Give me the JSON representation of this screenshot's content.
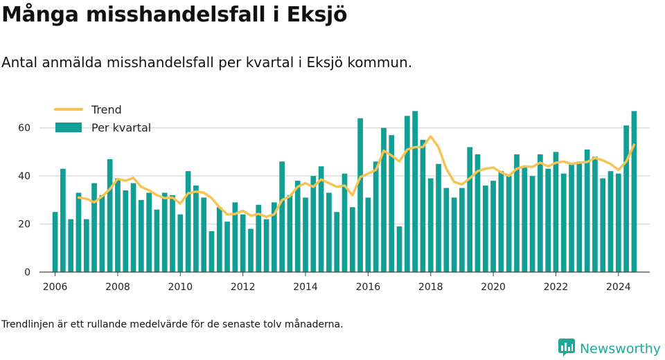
{
  "header": {
    "title": "Många misshandelsfall i Eksjö",
    "subtitle": "Antal anmälda misshandelsfall per kvartal i Eksjö kommun."
  },
  "footnote": "Trendlinjen är ett rullande medelvärde för de senaste tolv månaderna.",
  "brand": {
    "name": "Newsworthy",
    "icon": "newsworthy-logo-icon",
    "color": "#2a9d8f"
  },
  "colors": {
    "bars": "#119e95",
    "trend": "#f5c455",
    "grid": "#dddddd",
    "axis": "#444444"
  },
  "chart_data": {
    "type": "bar",
    "title": "Många misshandelsfall i Eksjö",
    "ylim": [
      0,
      70
    ],
    "yticks": [
      0,
      20,
      40,
      60
    ],
    "xlim": [
      2005.5,
      2025.0
    ],
    "xticks": [
      2006,
      2008,
      2010,
      2012,
      2014,
      2016,
      2018,
      2020,
      2022,
      2024
    ],
    "grid": true,
    "legend_position": "top-left",
    "series": [
      {
        "name": "Per kvartal",
        "type": "bar",
        "x": [
          2006.0,
          2006.25,
          2006.5,
          2006.75,
          2007.0,
          2007.25,
          2007.5,
          2007.75,
          2008.0,
          2008.25,
          2008.5,
          2008.75,
          2009.0,
          2009.25,
          2009.5,
          2009.75,
          2010.0,
          2010.25,
          2010.5,
          2010.75,
          2011.0,
          2011.25,
          2011.5,
          2011.75,
          2012.0,
          2012.25,
          2012.5,
          2012.75,
          2013.0,
          2013.25,
          2013.5,
          2013.75,
          2014.0,
          2014.25,
          2014.5,
          2014.75,
          2015.0,
          2015.25,
          2015.5,
          2015.75,
          2016.0,
          2016.25,
          2016.5,
          2016.75,
          2017.0,
          2017.25,
          2017.5,
          2017.75,
          2018.0,
          2018.25,
          2018.5,
          2018.75,
          2019.0,
          2019.25,
          2019.5,
          2019.75,
          2020.0,
          2020.25,
          2020.5,
          2020.75,
          2021.0,
          2021.25,
          2021.5,
          2021.75,
          2022.0,
          2022.25,
          2022.5,
          2022.75,
          2023.0,
          2023.25,
          2023.5,
          2023.75,
          2024.0,
          2024.25,
          2024.5
        ],
        "values": [
          25,
          43,
          22,
          33,
          22,
          37,
          32,
          47,
          39,
          34,
          37,
          30,
          33,
          26,
          33,
          32,
          24,
          42,
          36,
          31,
          17,
          27,
          21,
          29,
          24,
          18,
          28,
          22,
          29,
          46,
          32,
          38,
          31,
          40,
          44,
          33,
          25,
          41,
          27,
          64,
          31,
          46,
          60,
          57,
          19,
          65,
          67,
          55,
          39,
          45,
          35,
          31,
          35,
          52,
          49,
          36,
          38,
          42,
          40,
          49,
          44,
          40,
          49,
          43,
          50,
          41,
          45,
          46,
          51,
          48,
          39,
          42,
          41,
          61,
          67
        ]
      },
      {
        "name": "Trend",
        "type": "line",
        "x": [
          2006.75,
          2007.0,
          2007.25,
          2007.5,
          2007.75,
          2008.0,
          2008.25,
          2008.5,
          2008.75,
          2009.0,
          2009.25,
          2009.5,
          2009.75,
          2010.0,
          2010.25,
          2010.5,
          2010.75,
          2011.0,
          2011.25,
          2011.5,
          2011.75,
          2012.0,
          2012.25,
          2012.5,
          2012.75,
          2013.0,
          2013.25,
          2013.5,
          2013.75,
          2014.0,
          2014.25,
          2014.5,
          2014.75,
          2015.0,
          2015.25,
          2015.5,
          2015.75,
          2016.0,
          2016.25,
          2016.5,
          2016.75,
          2017.0,
          2017.25,
          2017.5,
          2017.75,
          2018.0,
          2018.25,
          2018.5,
          2018.75,
          2019.0,
          2019.25,
          2019.5,
          2019.75,
          2020.0,
          2020.25,
          2020.5,
          2020.75,
          2021.0,
          2021.25,
          2021.5,
          2021.75,
          2022.0,
          2022.25,
          2022.5,
          2022.75,
          2023.0,
          2023.25,
          2023.5,
          2023.75,
          2024.0,
          2024.25,
          2024.5
        ],
        "values": [
          31,
          30.5,
          29,
          31.5,
          34.5,
          38.8,
          38,
          39.2,
          35.5,
          34,
          32,
          30.8,
          31,
          28.5,
          32.8,
          33.5,
          33,
          30.8,
          27,
          24,
          24.2,
          25.5,
          23.5,
          24.2,
          23,
          24,
          30,
          31.5,
          35.5,
          37,
          35.5,
          38.5,
          37,
          35.5,
          36,
          32,
          39.5,
          41,
          42.5,
          50.5,
          48.5,
          46,
          51,
          52,
          52,
          56.5,
          52,
          43,
          37.5,
          36.5,
          39,
          42,
          43,
          43.5,
          41.5,
          40,
          43,
          44,
          43.8,
          45.5,
          44,
          45.5,
          46,
          45,
          45.5,
          45.8,
          47.5,
          46.5,
          45,
          42.5,
          46,
          53
        ]
      }
    ]
  }
}
